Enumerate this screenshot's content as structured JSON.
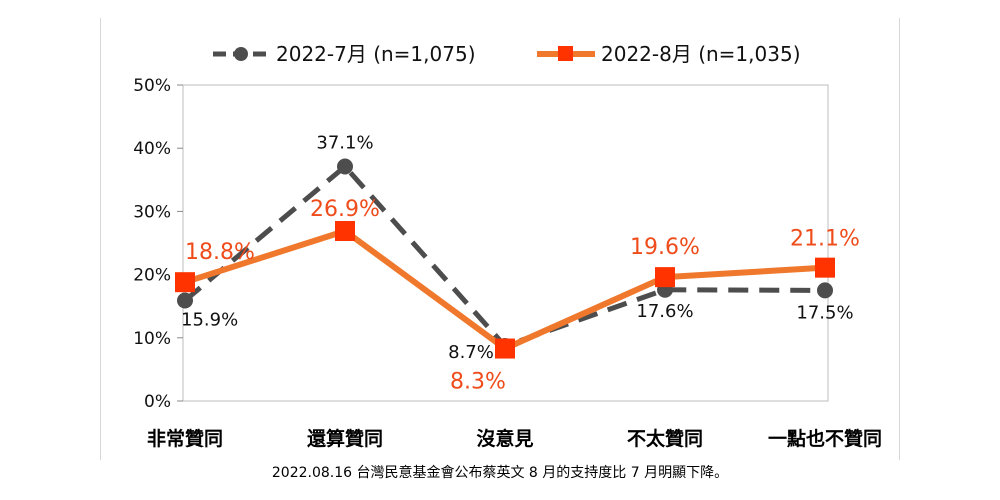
{
  "caption": "2022.08.16 台灣民意基金會公布蔡英文 8 月的支持度比 7 月明顯下降。",
  "chart_data": {
    "type": "line",
    "categories": [
      "非常贊同",
      "還算贊同",
      "沒意見",
      "不太贊同",
      "一點也不贊同"
    ],
    "y_ticks": [
      "0%",
      "10%",
      "20%",
      "30%",
      "40%",
      "50%"
    ],
    "ylim": [
      0,
      50
    ],
    "grid": false,
    "legend_position": "top",
    "series": [
      {
        "name": "2022-7月  (n=1,075)",
        "values": [
          15.9,
          37.1,
          8.7,
          17.6,
          17.5
        ],
        "labels": [
          "15.9%",
          "37.1%",
          "8.7%",
          "17.6%",
          "17.5%"
        ],
        "color": "#4d4d4d",
        "style": "dashed",
        "marker": "circle"
      },
      {
        "name": "2022-8月  (n=1,035)",
        "values": [
          18.8,
          26.9,
          8.3,
          19.6,
          21.1
        ],
        "labels": [
          "18.8%",
          "26.9%",
          "8.3%",
          "19.6%",
          "21.1%"
        ],
        "color": "#f0782c",
        "marker_color": "#ff3300",
        "style": "solid",
        "marker": "square"
      }
    ]
  }
}
